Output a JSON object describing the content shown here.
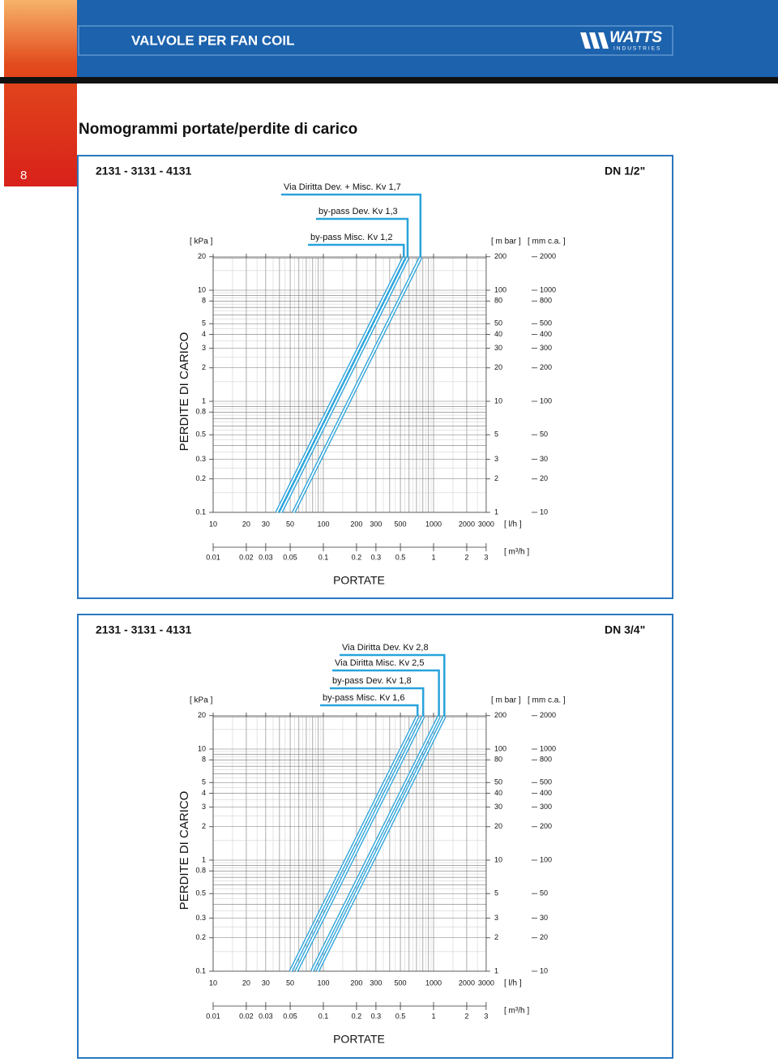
{
  "header": {
    "title": "VALVOLE PER FAN COIL",
    "logo": "WATTS",
    "logo_sub": "INDUSTRIES"
  },
  "page_number": "8",
  "page_title": "Nomogrammi portate/perdite di carico",
  "panels": [
    {
      "models": "2131 - 3131 - 4131",
      "size": "DN 1/2\"",
      "curves": [
        "Via Diritta  Dev. + Misc. Kv 1,7",
        "by-pass Dev. Kv 1,3",
        "by-pass Misc. Kv 1,2"
      ],
      "y_axis_title": "PERDITE DI CARICO",
      "x_axis_title": "PORTATE",
      "kpa_unit": "[ kPa ]",
      "mbar_unit": "[ m bar ]",
      "mmca_unit": "[ mm c.a. ]",
      "lh_unit": "[ l/h ]",
      "m3h_unit": "[ m³/h ]",
      "kpa_ticks": [
        "20",
        "10",
        "8",
        "5",
        "4",
        "3",
        "2",
        "1",
        "0.8",
        "0.5",
        "0.3",
        "0.2",
        "0.1"
      ],
      "mbar_ticks": [
        "200",
        "100",
        "80",
        "50",
        "40",
        "30",
        "20",
        "10",
        "5",
        "3",
        "2",
        "1"
      ],
      "mmca_ticks": [
        "2000",
        "1000",
        "800",
        "500",
        "400",
        "300",
        "200",
        "100",
        "50",
        "30",
        "20",
        "10"
      ],
      "lh_ticks": [
        "10",
        "20",
        "30",
        "50",
        "100",
        "200",
        "300",
        "500",
        "1000",
        "2000",
        "3000"
      ],
      "m3h_ticks": [
        "0.01",
        "0.02",
        "0.03",
        "0.05",
        "0.1",
        "0.2",
        "0.3",
        "0.5",
        "1",
        "2",
        "3"
      ]
    },
    {
      "models": "2131 - 3131 - 4131",
      "size": "DN 3/4\"",
      "curves": [
        "Via Diritta Dev. Kv 2,8",
        "Via Diritta Misc. Kv 2,5",
        "by-pass Dev. Kv 1,8",
        "by-pass Misc. Kv 1,6"
      ],
      "y_axis_title": "PERDITE DI CARICO",
      "x_axis_title": "PORTATE",
      "kpa_unit": "[ kPa ]",
      "mbar_unit": "[ m bar ]",
      "mmca_unit": "[ mm c.a. ]",
      "lh_unit": "[ l/h ]",
      "m3h_unit": "[ m³/h ]",
      "kpa_ticks": [
        "20",
        "10",
        "8",
        "5",
        "4",
        "3",
        "2",
        "1",
        "0.8",
        "0.5",
        "0.3",
        "0.2",
        "0.1"
      ],
      "mbar_ticks": [
        "200",
        "100",
        "80",
        "50",
        "40",
        "30",
        "20",
        "10",
        "5",
        "3",
        "2",
        "1"
      ],
      "mmca_ticks": [
        "2000",
        "1000",
        "800",
        "500",
        "400",
        "300",
        "200",
        "100",
        "50",
        "30",
        "20",
        "10"
      ],
      "lh_ticks": [
        "10",
        "20",
        "30",
        "50",
        "100",
        "200",
        "300",
        "500",
        "1000",
        "2000",
        "3000"
      ],
      "m3h_ticks": [
        "0.01",
        "0.02",
        "0.03",
        "0.05",
        "0.1",
        "0.2",
        "0.3",
        "0.5",
        "1",
        "2",
        "3"
      ]
    }
  ]
}
